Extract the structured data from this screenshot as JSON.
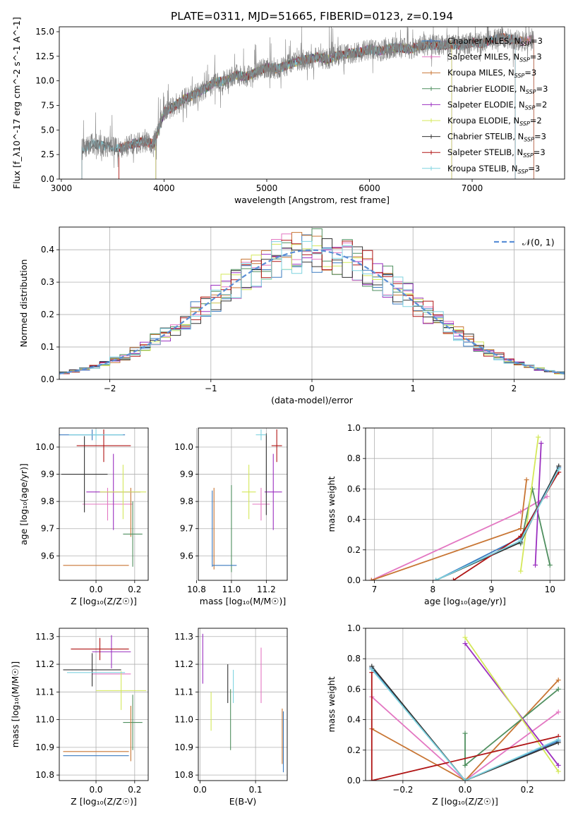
{
  "figure": {
    "title": "PLATE=0311, MJD=51665, FIBERID=0123, z=0.194"
  },
  "series_styles": [
    {
      "name": "Chabrier MILES, N$_{SSP}$=3",
      "label_main": "Chabrier MILES, N",
      "label_sub": "SSP",
      "label_tail": "=3",
      "color": "#3a7abf"
    },
    {
      "name": "Salpeter MILES, N$_{SSP}$=3",
      "label_main": "Salpeter MILES, N",
      "label_sub": "SSP",
      "label_tail": "=3",
      "color": "#e377c2"
    },
    {
      "name": "Kroupa MILES, N$_{SSP}$=3",
      "label_main": "Kroupa MILES, N",
      "label_sub": "SSP",
      "label_tail": "=3",
      "color": "#c87533"
    },
    {
      "name": "Chabrier ELODIE, N$_{SSP}$=3",
      "label_main": "Chabrier ELODIE, N",
      "label_sub": "SSP",
      "label_tail": "=3",
      "color": "#4f8f5f"
    },
    {
      "name": "Salpeter ELODIE, N$_{SSP}$=2",
      "label_main": "Salpeter ELODIE, N",
      "label_sub": "SSP",
      "label_tail": "=2",
      "color": "#9b30c0"
    },
    {
      "name": "Kroupa ELODIE, N$_{SSP}$=2",
      "label_main": "Kroupa ELODIE, N",
      "label_sub": "SSP",
      "label_tail": "=2",
      "color": "#d4e85a"
    },
    {
      "name": "Chabrier STELIB, N$_{SSP}$=3",
      "label_main": "Chabrier STELIB, N",
      "label_sub": "SSP",
      "label_tail": "=3",
      "color": "#333333"
    },
    {
      "name": "Salpeter STELIB, N$_{SSP}$=3",
      "label_main": "Salpeter STELIB, N",
      "label_sub": "SSP",
      "label_tail": "=3",
      "color": "#b01515"
    },
    {
      "name": "Kroupa STELIB, N$_{SSP}$=3",
      "label_main": "Kroupa STELIB, N",
      "label_sub": "SSP",
      "label_tail": "=3",
      "color": "#7fd3e0"
    }
  ],
  "chart_data": [
    {
      "type": "line",
      "id": "spectrum",
      "xlabel": "wavelength [Angstrom, rest frame]",
      "ylabel": "Flux [f_λ10^-17 erg cm^-2 s^-1 A^-1]",
      "xlim": [
        2980,
        7900
      ],
      "ylim": [
        0,
        15.5
      ],
      "xticks": [
        3000,
        4000,
        5000,
        6000,
        7000
      ],
      "yticks": [
        0.0,
        2.5,
        5.0,
        7.5,
        10.0,
        12.5,
        15.0
      ],
      "xticklabels": [
        "3000",
        "4000",
        "5000",
        "6000",
        "7000"
      ],
      "yticklabels": [
        "0.0",
        "2.5",
        "5.0",
        "7.5",
        "10.0",
        "12.5",
        "15.0"
      ],
      "observed_color": "#808080",
      "observed_continuum": {
        "x": [
          3200,
          3300,
          3400,
          3500,
          3600,
          3700,
          3800,
          3900,
          4000,
          4100,
          4200,
          4300,
          4400,
          4500,
          4600,
          4700,
          4800,
          4900,
          5000,
          5100,
          5200,
          5300,
          5400,
          5500,
          5600,
          5700,
          5800,
          5900,
          6000,
          6100,
          6200,
          6300,
          6400,
          6500,
          6600,
          6700,
          6800,
          6900,
          7000,
          7100,
          7200,
          7300,
          7400,
          7500,
          7600
        ],
        "y": [
          3.0,
          3.6,
          3.4,
          3.2,
          3.2,
          3.6,
          3.8,
          3.6,
          6.8,
          7.4,
          8.2,
          8.6,
          9.2,
          9.9,
          10.0,
          10.6,
          10.4,
          10.9,
          11.4,
          11.2,
          11.6,
          12.0,
          12.2,
          12.4,
          12.2,
          12.6,
          12.8,
          12.9,
          13.2,
          13.0,
          13.3,
          13.4,
          13.2,
          13.6,
          13.7,
          13.6,
          13.7,
          13.6,
          13.9,
          13.8,
          14.2,
          14.4,
          14.2,
          14.0,
          14.2
        ]
      },
      "model_start_wavelength": [
        3560,
        3560,
        3560,
        3920,
        3920,
        3920,
        3200,
        3560,
        3200
      ],
      "model_end_wavelength": [
        7600,
        7600,
        7600,
        6800,
        6800,
        6800,
        7420,
        7420,
        7420
      ]
    },
    {
      "type": "bar",
      "id": "residual_histogram",
      "xlabel": "(data-model)/error",
      "ylabel": "Normed distribution",
      "xlim": [
        -2.5,
        2.5
      ],
      "ylim": [
        0,
        0.47
      ],
      "xticks": [
        -2,
        -1,
        0,
        1,
        2
      ],
      "yticks": [
        0.0,
        0.1,
        0.2,
        0.3,
        0.4
      ],
      "xticklabels": [
        "−2",
        "−1",
        "0",
        "1",
        "2"
      ],
      "yticklabels": [
        "0.0",
        "0.1",
        "0.2",
        "0.3",
        "0.4"
      ],
      "bin_width": 0.1,
      "reference": {
        "name": "𝒩(0, 1)",
        "mean": 0,
        "sigma": 1,
        "color": "#5b8fd6"
      }
    },
    {
      "type": "scatter",
      "id": "age_vs_Z",
      "xlabel": "Z [log₁₀(Z/Z☉)]",
      "ylabel": "age  [log₁₀(age/yr)]",
      "xlim": [
        -0.19,
        0.27
      ],
      "ylim": [
        9.51,
        10.07
      ],
      "xticks": [
        0.0,
        0.2
      ],
      "yticks": [
        9.6,
        9.7,
        9.8,
        9.9,
        10.0
      ],
      "xticklabels": [
        "0.0",
        "0.2"
      ],
      "yticklabels": [
        "9.6",
        "9.7",
        "9.8",
        "9.9",
        "10.0"
      ],
      "points": [
        {
          "series": 0,
          "x": -0.02,
          "y": 10.045,
          "xerr": 0.17,
          "yerr": 0.02
        },
        {
          "series": 1,
          "x": 0.06,
          "y": 9.79,
          "xerr": 0.13,
          "yerr": 0.06
        },
        {
          "series": 2,
          "x": 0.18,
          "y": 9.76,
          "xerr": 0.0,
          "yerr": 0.09
        },
        {
          "series": 3,
          "x": 0.19,
          "y": 9.68,
          "xerr": 0.05,
          "yerr": 0.12
        },
        {
          "series": 4,
          "x": 0.09,
          "y": 9.835,
          "xerr": 0.14,
          "yerr": 0.14
        },
        {
          "series": 5,
          "x": 0.14,
          "y": 9.835,
          "xerr": 0.12,
          "yerr": 0.1
        },
        {
          "series": 6,
          "x": -0.06,
          "y": 9.9,
          "xerr": 0.12,
          "yerr": 0.14
        },
        {
          "series": 7,
          "x": 0.04,
          "y": 10.005,
          "xerr": 0.14,
          "yerr": 0.06
        },
        {
          "series": 8,
          "x": 0.0,
          "y": 10.045,
          "xerr": 0.14,
          "yerr": 0.02
        },
        {
          "series": 2,
          "x": 0.0,
          "y": 9.565,
          "xerr": 0.17,
          "yerr": 0.0
        }
      ]
    },
    {
      "type": "scatter",
      "id": "age_vs_mass",
      "xlabel": "mass [log₁₀(M/M☉)]",
      "ylabel": "",
      "xlim": [
        10.81,
        11.32
      ],
      "ylim": [
        9.51,
        10.07
      ],
      "xticks": [
        10.8,
        11.0,
        11.2
      ],
      "yticks": [
        9.6,
        9.7,
        9.8,
        9.9,
        10.0
      ],
      "xticklabels": [
        "10.8",
        "11.0",
        "11.2"
      ],
      "yticklabels": [
        "9.6",
        "9.7",
        "9.8",
        "9.9",
        "10.0"
      ],
      "points": [
        {
          "series": 0,
          "x": 10.89,
          "y": 9.7,
          "xerr": 0.0,
          "yerr": 0.14
        },
        {
          "series": 2,
          "x": 10.9,
          "y": 9.7,
          "xerr": 0.0,
          "yerr": 0.15
        },
        {
          "series": 3,
          "x": 11.0,
          "y": 9.7,
          "xerr": 0.0,
          "yerr": 0.16
        },
        {
          "series": 1,
          "x": 11.17,
          "y": 9.79,
          "xerr": 0.05,
          "yerr": 0.06
        },
        {
          "series": 4,
          "x": 11.24,
          "y": 9.835,
          "xerr": 0.05,
          "yerr": 0.14
        },
        {
          "series": 5,
          "x": 11.1,
          "y": 9.835,
          "xerr": 0.04,
          "yerr": 0.1
        },
        {
          "series": 6,
          "x": 11.2,
          "y": 9.9,
          "xerr": 0.0,
          "yerr": 0.15
        },
        {
          "series": 7,
          "x": 11.26,
          "y": 10.005,
          "xerr": 0.03,
          "yerr": 0.06
        },
        {
          "series": 8,
          "x": 11.17,
          "y": 10.045,
          "xerr": 0.03,
          "yerr": 0.02
        },
        {
          "series": 0,
          "x": 10.96,
          "y": 9.565,
          "xerr": 0.07,
          "yerr": 0.0
        }
      ]
    },
    {
      "type": "line",
      "id": "massweight_vs_age",
      "xlabel": "age  [log₁₀(age/yr)]",
      "ylabel": "mass weight",
      "xlim": [
        6.85,
        10.25
      ],
      "ylim": [
        0,
        1.0
      ],
      "xticks": [
        7,
        8,
        9,
        10
      ],
      "yticks": [
        0.0,
        0.2,
        0.4,
        0.6,
        0.8,
        1.0
      ],
      "xticklabels": [
        "7",
        "8",
        "9",
        "10"
      ],
      "yticklabels": [
        "0.0",
        "0.2",
        "0.4",
        "0.6",
        "0.8",
        "1.0"
      ],
      "series": [
        {
          "series": 0,
          "x": [
            8.05,
            9.5,
            10.15
          ],
          "y": [
            0.0,
            0.28,
            0.74
          ]
        },
        {
          "series": 1,
          "x": [
            6.95,
            9.5,
            9.95
          ],
          "y": [
            0.0,
            0.45,
            0.55
          ]
        },
        {
          "series": 2,
          "x": [
            6.95,
            9.5,
            9.6
          ],
          "y": [
            0.0,
            0.34,
            0.66
          ]
        },
        {
          "series": 3,
          "x": [
            9.5,
            9.7,
            10.0
          ],
          "y": [
            0.24,
            0.6,
            0.1
          ]
        },
        {
          "series": 4,
          "x": [
            9.75,
            9.85
          ],
          "y": [
            0.1,
            0.9
          ]
        },
        {
          "series": 5,
          "x": [
            9.5,
            9.8
          ],
          "y": [
            0.06,
            0.94
          ]
        },
        {
          "series": 6,
          "x": [
            8.05,
            9.5,
            10.15
          ],
          "y": [
            0.0,
            0.25,
            0.75
          ]
        },
        {
          "series": 7,
          "x": [
            8.35,
            9.5,
            10.15
          ],
          "y": [
            0.0,
            0.29,
            0.71
          ]
        },
        {
          "series": 8,
          "x": [
            8.05,
            9.5,
            10.15
          ],
          "y": [
            0.0,
            0.26,
            0.73
          ]
        }
      ]
    },
    {
      "type": "scatter",
      "id": "mass_vs_Z",
      "xlabel": "Z [log₁₀(Z/Z☉)]",
      "ylabel": "mass [log₁₀(M/M☉)]",
      "xlim": [
        -0.19,
        0.27
      ],
      "ylim": [
        10.78,
        11.33
      ],
      "xticks": [
        0.0,
        0.2
      ],
      "yticks": [
        10.8,
        10.9,
        11.0,
        11.1,
        11.2,
        11.3
      ],
      "xticklabels": [
        "0.0",
        "0.2"
      ],
      "yticklabels": [
        "10.8",
        "10.9",
        "11.0",
        "11.1",
        "11.2",
        "11.3"
      ],
      "points": [
        {
          "series": 0,
          "x": 0.0,
          "y": 10.87,
          "xerr": 0.17,
          "yerr": 0.0
        },
        {
          "series": 2,
          "x": 0.0,
          "y": 10.885,
          "xerr": 0.17,
          "yerr": 0.0
        },
        {
          "series": 1,
          "x": 0.08,
          "y": 11.165,
          "xerr": 0.1,
          "yerr": 0.0
        },
        {
          "series": 3,
          "x": 0.19,
          "y": 10.99,
          "xerr": 0.05,
          "yerr": 0.1
        },
        {
          "series": 4,
          "x": 0.08,
          "y": 11.245,
          "xerr": 0.1,
          "yerr": 0.06
        },
        {
          "series": 5,
          "x": 0.13,
          "y": 11.105,
          "xerr": 0.13,
          "yerr": 0.07
        },
        {
          "series": 6,
          "x": -0.02,
          "y": 11.18,
          "xerr": 0.15,
          "yerr": 0.06
        },
        {
          "series": 7,
          "x": 0.02,
          "y": 11.255,
          "xerr": 0.15,
          "yerr": 0.04
        },
        {
          "series": 8,
          "x": 0.0,
          "y": 11.17,
          "xerr": 0.15,
          "yerr": 0.0
        },
        {
          "series": 2,
          "x": 0.18,
          "y": 10.95,
          "xerr": 0.0,
          "yerr": 0.1
        }
      ]
    },
    {
      "type": "scatter",
      "id": "mass_vs_EBV",
      "xlabel": "E(B-V)",
      "ylabel": "",
      "xlim": [
        -0.003,
        0.157
      ],
      "ylim": [
        10.78,
        11.33
      ],
      "xticks": [
        0.0,
        0.1
      ],
      "yticks": [
        10.8,
        10.9,
        11.0,
        11.1,
        11.2,
        11.3
      ],
      "xticklabels": [
        "0.0",
        "0.1"
      ],
      "yticklabels": [
        "10.8",
        "10.9",
        "11.0",
        "11.1",
        "11.2",
        "11.3"
      ],
      "points": [
        {
          "series": 4,
          "x": 0.005,
          "y": 11.22,
          "xerr": 0.0,
          "yerr": 0.09
        },
        {
          "series": 5,
          "x": 0.02,
          "y": 11.03,
          "xerr": 0.0,
          "yerr": 0.07
        },
        {
          "series": 6,
          "x": 0.05,
          "y": 11.13,
          "xerr": 0.0,
          "yerr": 0.07
        },
        {
          "series": 3,
          "x": 0.055,
          "y": 11.0,
          "xerr": 0.0,
          "yerr": 0.11
        },
        {
          "series": 8,
          "x": 0.06,
          "y": 11.12,
          "xerr": 0.0,
          "yerr": 0.06
        },
        {
          "series": 1,
          "x": 0.11,
          "y": 11.16,
          "xerr": 0.0,
          "yerr": 0.1
        },
        {
          "series": 2,
          "x": 0.148,
          "y": 10.94,
          "xerr": 0.0,
          "yerr": 0.1
        },
        {
          "series": 0,
          "x": 0.15,
          "y": 10.92,
          "xerr": 0.0,
          "yerr": 0.11
        }
      ]
    },
    {
      "type": "line",
      "id": "massweight_vs_Z",
      "xlabel": "Z [log₁₀(Z/Z☉)]",
      "ylabel": "mass weight",
      "xlim": [
        -0.32,
        0.32
      ],
      "ylim": [
        0,
        1.0
      ],
      "xticks": [
        -0.2,
        0.0,
        0.2
      ],
      "yticks": [
        0.0,
        0.2,
        0.4,
        0.6,
        0.8,
        1.0
      ],
      "xticklabels": [
        "−0.2",
        "0.0",
        "0.2"
      ],
      "yticklabels": [
        "0.0",
        "0.2",
        "0.4",
        "0.6",
        "0.8",
        "1.0"
      ],
      "series": [
        {
          "series": 0,
          "x": [
            -0.3,
            0.0,
            0.3
          ],
          "y": [
            0.74,
            0.0,
            0.26
          ]
        },
        {
          "series": 1,
          "x": [
            -0.3,
            0.0,
            0.3
          ],
          "y": [
            0.55,
            0.0,
            0.45
          ]
        },
        {
          "series": 2,
          "x": [
            -0.3,
            0.0,
            0.3
          ],
          "y": [
            0.34,
            0.0,
            0.66
          ]
        },
        {
          "series": 3,
          "x": [
            0.0,
            0.0,
            0.3
          ],
          "y": [
            0.31,
            0.1,
            0.6
          ]
        },
        {
          "series": 4,
          "x": [
            0.0,
            0.3
          ],
          "y": [
            0.9,
            0.1
          ]
        },
        {
          "series": 5,
          "x": [
            0.0,
            0.3
          ],
          "y": [
            0.94,
            0.06
          ]
        },
        {
          "series": 6,
          "x": [
            -0.3,
            0.0,
            0.3
          ],
          "y": [
            0.75,
            0.0,
            0.25
          ]
        },
        {
          "series": 7,
          "x": [
            -0.3,
            -0.3,
            0.3
          ],
          "y": [
            0.71,
            0.0,
            0.29
          ]
        },
        {
          "series": 8,
          "x": [
            -0.3,
            0.0,
            0.3
          ],
          "y": [
            0.73,
            0.0,
            0.27
          ]
        }
      ]
    }
  ]
}
